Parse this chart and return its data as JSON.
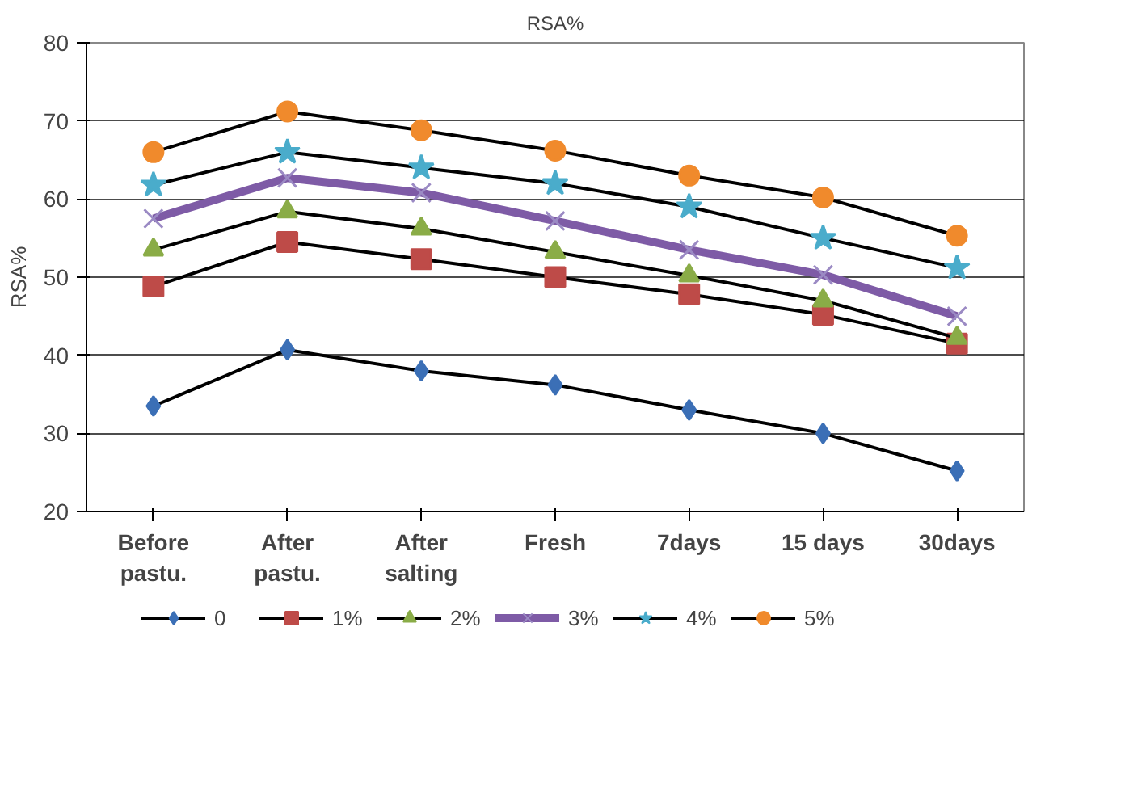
{
  "chart_data": {
    "type": "line",
    "title": "RSA%",
    "ylabel": "RSA%",
    "categories": [
      "Before\npastu.",
      "After\npastu.",
      "After\nsalting",
      "Fresh",
      "7days",
      "15 days",
      "30days"
    ],
    "series": [
      {
        "name": "0",
        "color": "#000000",
        "colors": [
          "#3b6fb6",
          "#3b6fb6",
          "#3b6fb6",
          "#3b6fb6",
          "#3b6fb6",
          "#3b6fb6",
          "#3b6fb6"
        ],
        "marker": "diamond",
        "values": [
          33.5,
          40.7,
          38,
          36.2,
          33,
          30,
          25.2
        ]
      },
      {
        "name": "1%",
        "color": "#000000",
        "colors": [
          "#be4b48",
          "#be4b48",
          "#be4b48",
          "#be4b48",
          "#be4b48",
          "#be4b48",
          "#be4b48"
        ],
        "marker": "square",
        "values": [
          48.8,
          54.5,
          52.3,
          50,
          47.8,
          45.2,
          41.5
        ]
      },
      {
        "name": "2%",
        "color": "#000000",
        "colors": [
          "#8aac47",
          "#8aac47",
          "#8aac47",
          "#8aac47",
          "#8aac47",
          "#8aac47",
          "#8aac47"
        ],
        "marker": "triangle",
        "values": [
          53.5,
          58.4,
          56.2,
          53.2,
          50.2,
          47,
          42.2
        ]
      },
      {
        "name": "3%",
        "color": "#7e5ba6",
        "colors": [
          "#9b8ac4",
          "#9b8ac4",
          "#9b8ac4",
          "#9b8ac4",
          "#9b8ac4",
          "#9b8ac4",
          "#9b8ac4"
        ],
        "marker": "cross",
        "values": [
          57.5,
          62.7,
          60.8,
          57.2,
          53.5,
          50.3,
          45
        ]
      },
      {
        "name": "4%",
        "color": "#000000",
        "colors": [
          "#4aaccb",
          "#4aaccb",
          "#4aaccb",
          "#4aaccb",
          "#4aaccb",
          "#4aaccb",
          "#4aaccb"
        ],
        "marker": "star",
        "values": [
          61.8,
          66,
          64,
          62,
          59,
          55,
          51.2
        ]
      },
      {
        "name": "5%",
        "color": "#000000",
        "colors": [
          "#f08a2c",
          "#f08a2c",
          "#f08a2c",
          "#f08a2c",
          "#f08a2c",
          "#f08a2c",
          "#f08a2c"
        ],
        "marker": "circle",
        "values": [
          66,
          71.2,
          68.8,
          66.2,
          63,
          60.2,
          55.3
        ]
      }
    ],
    "ylim": [
      20,
      80
    ],
    "yticks": [
      20,
      30,
      40,
      50,
      60,
      70,
      80
    ],
    "grid": "y",
    "legend": "bottom"
  }
}
